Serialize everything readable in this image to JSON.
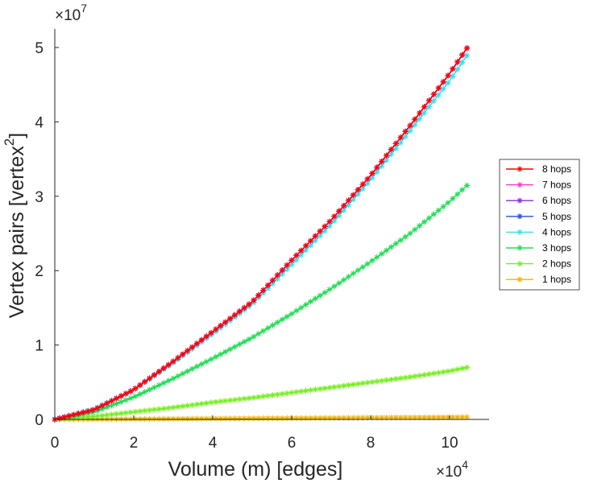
{
  "chart_data": {
    "type": "line",
    "title": "",
    "xlabel": "Volume (m) [edges]",
    "ylabel": "Vertex pairs [vertex",
    "ylabel_superscript": "2",
    "ylabel_close": "]",
    "x_exponent": {
      "base": "×10",
      "power": "4"
    },
    "y_exponent": {
      "base": "×10",
      "power": "7"
    },
    "xlim": [
      0,
      10.8
    ],
    "ylim": [
      0,
      5.3
    ],
    "xticks": [
      0,
      2,
      4,
      6,
      8,
      10
    ],
    "yticks": [
      0,
      1,
      2,
      3,
      4,
      5
    ],
    "x_units": "×10^4 edges",
    "y_units": "×10^7 vertex^2",
    "legend_location": "right",
    "marker": "asterisk",
    "series": [
      {
        "name": "8 hops",
        "color": "#ff0000",
        "x": [
          0,
          1,
          2,
          3,
          4,
          5,
          6,
          7,
          8,
          9,
          10,
          10.45
        ],
        "y": [
          0,
          0.13,
          0.4,
          0.78,
          1.18,
          1.58,
          2.14,
          2.68,
          3.28,
          3.95,
          4.65,
          5.0
        ]
      },
      {
        "name": "7 hops",
        "color": "#ff33cc",
        "x": [
          0,
          1,
          2,
          3,
          4,
          5,
          6,
          7,
          8,
          9,
          10,
          10.45
        ],
        "y": [
          0,
          0.13,
          0.4,
          0.78,
          1.18,
          1.58,
          2.14,
          2.68,
          3.28,
          3.95,
          4.65,
          5.0
        ]
      },
      {
        "name": "6 hops",
        "color": "#8a2be2",
        "x": [
          0,
          1,
          2,
          3,
          4,
          5,
          6,
          7,
          8,
          9,
          10,
          10.45
        ],
        "y": [
          0,
          0.13,
          0.4,
          0.78,
          1.18,
          1.58,
          2.14,
          2.68,
          3.28,
          3.95,
          4.65,
          5.0
        ]
      },
      {
        "name": "5 hops",
        "color": "#1f4fe0",
        "x": [
          0,
          1,
          2,
          3,
          4,
          5,
          6,
          7,
          8,
          9,
          10,
          10.45
        ],
        "y": [
          0,
          0.13,
          0.4,
          0.78,
          1.18,
          1.58,
          2.14,
          2.68,
          3.28,
          3.95,
          4.65,
          5.0
        ]
      },
      {
        "name": "4 hops",
        "color": "#33e0f0",
        "x": [
          0,
          1,
          2,
          3,
          4,
          5,
          6,
          7,
          8,
          9,
          10,
          10.45
        ],
        "y": [
          0,
          0.14,
          0.4,
          0.76,
          1.15,
          1.55,
          2.08,
          2.62,
          3.22,
          3.88,
          4.55,
          4.9
        ]
      },
      {
        "name": "3 hops",
        "color": "#22dd55",
        "x": [
          0,
          1,
          2,
          3,
          4,
          5,
          6,
          7,
          8,
          9,
          10,
          10.45
        ],
        "y": [
          0,
          0.1,
          0.3,
          0.55,
          0.82,
          1.1,
          1.42,
          1.76,
          2.12,
          2.5,
          2.93,
          3.15
        ]
      },
      {
        "name": "2 hops",
        "color": "#77ee22",
        "x": [
          0,
          1,
          2,
          3,
          4,
          5,
          6,
          7,
          8,
          9,
          10,
          10.45
        ],
        "y": [
          0,
          0.04,
          0.1,
          0.16,
          0.23,
          0.29,
          0.36,
          0.43,
          0.5,
          0.57,
          0.65,
          0.7
        ]
      },
      {
        "name": "1 hops",
        "color": "#f0b400",
        "x": [
          0,
          1,
          2,
          3,
          4,
          5,
          6,
          7,
          8,
          9,
          10,
          10.45
        ],
        "y": [
          0,
          0.002,
          0.005,
          0.008,
          0.011,
          0.014,
          0.017,
          0.02,
          0.023,
          0.026,
          0.029,
          0.031
        ]
      }
    ]
  }
}
